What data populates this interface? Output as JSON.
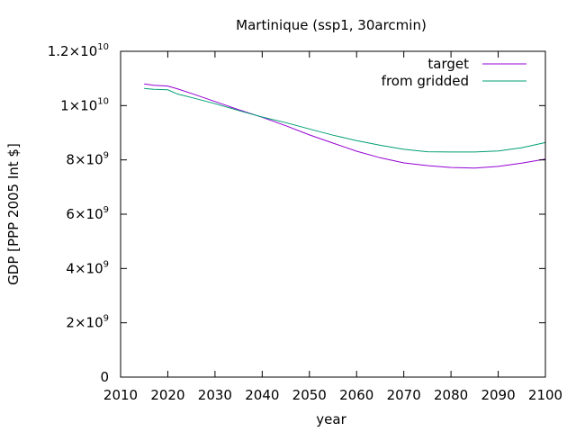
{
  "chart_data": {
    "type": "line",
    "title": "Martinique (ssp1, 30arcmin)",
    "xlabel": "year",
    "ylabel": "GDP [PPP 2005 Int $]",
    "xlim": [
      2010,
      2100
    ],
    "ylim": [
      0,
      12000000000
    ],
    "grid": false,
    "legend_position": "top-right",
    "x_ticks": [
      2010,
      2020,
      2030,
      2040,
      2050,
      2060,
      2070,
      2080,
      2090,
      2100
    ],
    "x_tick_labels": [
      "2010",
      "2020",
      "2030",
      "2040",
      "2050",
      "2060",
      "2070",
      "2080",
      "2090",
      "2100"
    ],
    "y_ticks": [
      0,
      2000000000,
      4000000000,
      6000000000,
      8000000000,
      10000000000,
      12000000000
    ],
    "y_tick_labels": [
      {
        "mantissa": "0",
        "exponent": ""
      },
      {
        "mantissa": "2×10",
        "exponent": "9"
      },
      {
        "mantissa": "4×10",
        "exponent": "9"
      },
      {
        "mantissa": "6×10",
        "exponent": "9"
      },
      {
        "mantissa": "8×10",
        "exponent": "9"
      },
      {
        "mantissa": "1×10",
        "exponent": "10"
      },
      {
        "mantissa": "1.2×10",
        "exponent": "10"
      }
    ],
    "x": [
      2015,
      2017,
      2020,
      2022,
      2025,
      2030,
      2035,
      2040,
      2045,
      2050,
      2055,
      2060,
      2065,
      2070,
      2075,
      2080,
      2085,
      2090,
      2095,
      2100
    ],
    "series": [
      {
        "name": "target",
        "color": "#9400d3",
        "values": [
          10800000000,
          10750000000,
          10720000000,
          10620000000,
          10450000000,
          10150000000,
          9850000000,
          9570000000,
          9260000000,
          8920000000,
          8620000000,
          8320000000,
          8080000000,
          7890000000,
          7790000000,
          7720000000,
          7700000000,
          7760000000,
          7880000000,
          8030000000
        ]
      },
      {
        "name": "from gridded",
        "color": "#009e73",
        "values": [
          10630000000,
          10600000000,
          10580000000,
          10430000000,
          10300000000,
          10070000000,
          9820000000,
          9580000000,
          9370000000,
          9140000000,
          8910000000,
          8710000000,
          8540000000,
          8390000000,
          8300000000,
          8290000000,
          8290000000,
          8330000000,
          8450000000,
          8640000000
        ]
      }
    ]
  }
}
